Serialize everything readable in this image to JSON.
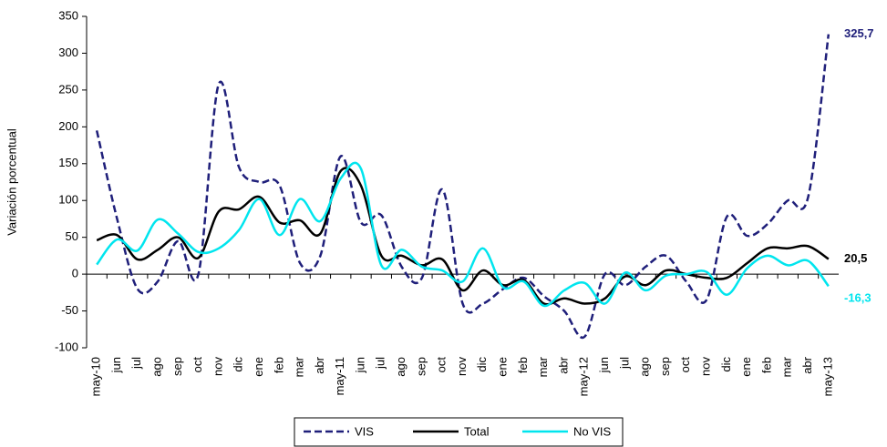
{
  "chart_data": {
    "type": "line",
    "y_label": "Variación porcentual",
    "categories": [
      "may-10",
      "jun",
      "jul",
      "ago",
      "sep",
      "oct",
      "nov",
      "dic",
      "ene",
      "feb",
      "mar",
      "abr",
      "may-11",
      "jun",
      "jul",
      "ago",
      "sep",
      "oct",
      "nov",
      "dic",
      "ene",
      "feb",
      "mar",
      "abr",
      "may-12",
      "jun",
      "jul",
      "ago",
      "sep",
      "oct",
      "nov",
      "dic",
      "ene",
      "feb",
      "mar",
      "abr",
      "may-13"
    ],
    "series": [
      {
        "name": "VIS",
        "color": "#1f1f7a",
        "dashed": true,
        "values": [
          195,
          75,
          -20,
          -10,
          45,
          0,
          258,
          145,
          125,
          120,
          15,
          25,
          160,
          70,
          80,
          10,
          -5,
          115,
          -40,
          -40,
          -20,
          -5,
          -30,
          -50,
          -85,
          0,
          -15,
          10,
          25,
          -10,
          -35,
          78,
          52,
          68,
          100,
          105,
          325.7
        ],
        "value_labels": [
          null,
          null,
          null,
          null,
          null,
          null,
          null,
          null,
          null,
          null,
          null,
          null,
          null,
          null,
          null,
          null,
          null,
          null,
          null,
          null,
          null,
          null,
          null,
          null,
          null,
          null,
          null,
          null,
          null,
          null,
          null,
          null,
          null,
          null,
          null,
          null,
          "325,7"
        ]
      },
      {
        "name": "Total",
        "color": "#000000",
        "dashed": false,
        "values": [
          46,
          53,
          20,
          33,
          50,
          22,
          85,
          88,
          105,
          70,
          73,
          55,
          140,
          120,
          25,
          25,
          12,
          20,
          -22,
          5,
          -15,
          -8,
          -40,
          -33,
          -40,
          -33,
          -3,
          -15,
          5,
          0,
          -5,
          -5,
          15,
          35,
          35,
          38,
          20.5
        ],
        "value_labels": [
          null,
          null,
          null,
          null,
          null,
          null,
          null,
          null,
          null,
          null,
          null,
          null,
          null,
          null,
          null,
          null,
          null,
          null,
          null,
          null,
          null,
          null,
          null,
          null,
          null,
          null,
          null,
          null,
          null,
          null,
          null,
          null,
          null,
          null,
          null,
          null,
          "20,5"
        ]
      },
      {
        "name": "No VIS",
        "color": "#00e5ee",
        "dashed": false,
        "values": [
          13,
          47,
          32,
          74,
          55,
          30,
          35,
          60,
          102,
          53,
          102,
          72,
          130,
          143,
          12,
          33,
          10,
          5,
          -10,
          35,
          -18,
          -10,
          -43,
          -22,
          -12,
          -40,
          2,
          -22,
          -2,
          0,
          3,
          -28,
          8,
          25,
          12,
          18,
          -16.3
        ],
        "value_labels": [
          null,
          null,
          null,
          null,
          null,
          null,
          null,
          null,
          null,
          null,
          null,
          null,
          null,
          null,
          null,
          null,
          null,
          null,
          null,
          null,
          null,
          null,
          null,
          null,
          null,
          null,
          null,
          null,
          null,
          null,
          null,
          null,
          null,
          null,
          null,
          null,
          "-16,3"
        ]
      }
    ],
    "ylim": [
      -100,
      350
    ],
    "yticks": [
      -100,
      -50,
      0,
      50,
      100,
      150,
      200,
      250,
      300,
      350
    ],
    "grid": false,
    "legend": "bottom"
  }
}
